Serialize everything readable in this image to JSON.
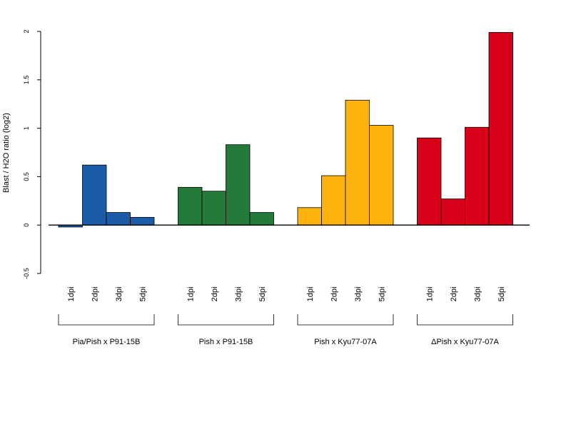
{
  "chart_data": {
    "type": "bar",
    "ylabel": "Blast / H2O ratio (log2)",
    "xlabel": "",
    "ylim": [
      -0.5,
      2
    ],
    "yticks": [
      "-0.5",
      "0",
      "0.5",
      "1",
      "1.5",
      "2"
    ],
    "baseline": 0,
    "groups": [
      {
        "name": "Pia/Pish x P91-15B",
        "color": "#1a5ca8",
        "categories": [
          "1dpi",
          "2dpi",
          "3dpi",
          "5dpi"
        ],
        "values": [
          -0.02,
          0.62,
          0.13,
          0.08
        ]
      },
      {
        "name": "Pish x P91-15B",
        "color": "#227b38",
        "categories": [
          "1dpi",
          "2dpi",
          "3dpi",
          "5dpi"
        ],
        "values": [
          0.39,
          0.35,
          0.83,
          0.13
        ]
      },
      {
        "name": "Pish x Kyu77-07A",
        "color": "#fdb30d",
        "categories": [
          "1dpi",
          "2dpi",
          "3dpi",
          "5dpi"
        ],
        "values": [
          0.18,
          0.51,
          1.29,
          1.03
        ]
      },
      {
        "name": "ΔPish x Kyu77-07A",
        "color": "#d9001a",
        "categories": [
          "1dpi",
          "2dpi",
          "3dpi",
          "5dpi"
        ],
        "values": [
          0.9,
          0.27,
          1.01,
          1.99
        ]
      }
    ]
  }
}
